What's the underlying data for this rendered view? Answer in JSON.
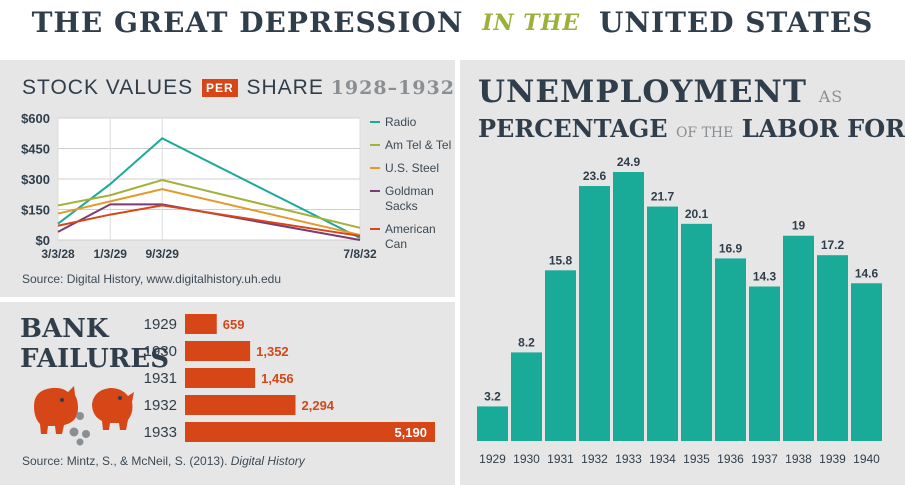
{
  "header": {
    "title_left": "THE GREAT DEPRESSION",
    "title_mid": "IN THE",
    "title_right": "UNITED STATES"
  },
  "stock": {
    "title_a": "STOCK VALUES",
    "title_per": "PER",
    "title_b": "SHARE",
    "title_years": "1928–1932",
    "source": "Source: Digital History, www.digitalhistory.uh.edu"
  },
  "bank": {
    "title_line1": "BANK",
    "title_line2": "FAILURES",
    "source_prefix": "Source: Mintz, S., & McNeil, S. (2013).",
    "source_italic": "Digital History"
  },
  "unemployment": {
    "title_main": "UNEMPLOYMENT",
    "title_as": "AS",
    "title_pct": "PERCENTAGE",
    "title_of_the": "OF THE",
    "title_labor": "LABOR FORCE"
  },
  "colors": {
    "teal": "#1aaa98",
    "orange": "#d64617",
    "dark": "#2f3e4a",
    "panel": "#e6e6e6"
  },
  "chart_data": [
    {
      "type": "line",
      "x": [
        "3/3/28",
        "1/3/29",
        "9/3/29",
        "7/8/32"
      ],
      "x_positions": [
        0,
        0.173,
        0.345,
        1.0
      ],
      "yticks": [
        "$0",
        "$150",
        "$300",
        "$450",
        "$600"
      ],
      "ylim": [
        0,
        600
      ],
      "series": [
        {
          "name": "Radio",
          "color": "#1aaa98",
          "values": [
            80,
            275,
            500,
            10
          ]
        },
        {
          "name": "Am Tel & Tel",
          "color": "#a3b13a",
          "values": [
            170,
            220,
            295,
            60
          ]
        },
        {
          "name": "U.S. Steel",
          "color": "#e29a2b",
          "values": [
            130,
            190,
            250,
            25
          ]
        },
        {
          "name": "Goldman\nSacks",
          "color": "#7a3c73",
          "values": [
            40,
            175,
            175,
            0
          ]
        },
        {
          "name": "American\nCan",
          "color": "#d64617",
          "values": [
            70,
            125,
            170,
            20
          ]
        }
      ],
      "legend": "right",
      "grid": true
    },
    {
      "type": "bar",
      "orientation": "horizontal",
      "categories": [
        "1929",
        "1930",
        "1931",
        "1932",
        "1933"
      ],
      "values": [
        659,
        1352,
        1456,
        2294,
        5190
      ],
      "labels": [
        "659",
        "1,352",
        "1,456",
        "2,294",
        "5,190"
      ]
    },
    {
      "type": "bar",
      "categories": [
        "1929",
        "1930",
        "1931",
        "1932",
        "1933",
        "1934",
        "1935",
        "1936",
        "1937",
        "1938",
        "1939",
        "1940"
      ],
      "values": [
        3.2,
        8.2,
        15.8,
        23.6,
        24.9,
        21.7,
        20.1,
        16.9,
        14.3,
        19,
        17.2,
        14.6
      ],
      "labels": [
        "3.2",
        "8.2",
        "15.8",
        "23.6",
        "24.9",
        "21.7",
        "20.1",
        "16.9",
        "14.3",
        "19",
        "17.2",
        "14.6"
      ]
    }
  ]
}
